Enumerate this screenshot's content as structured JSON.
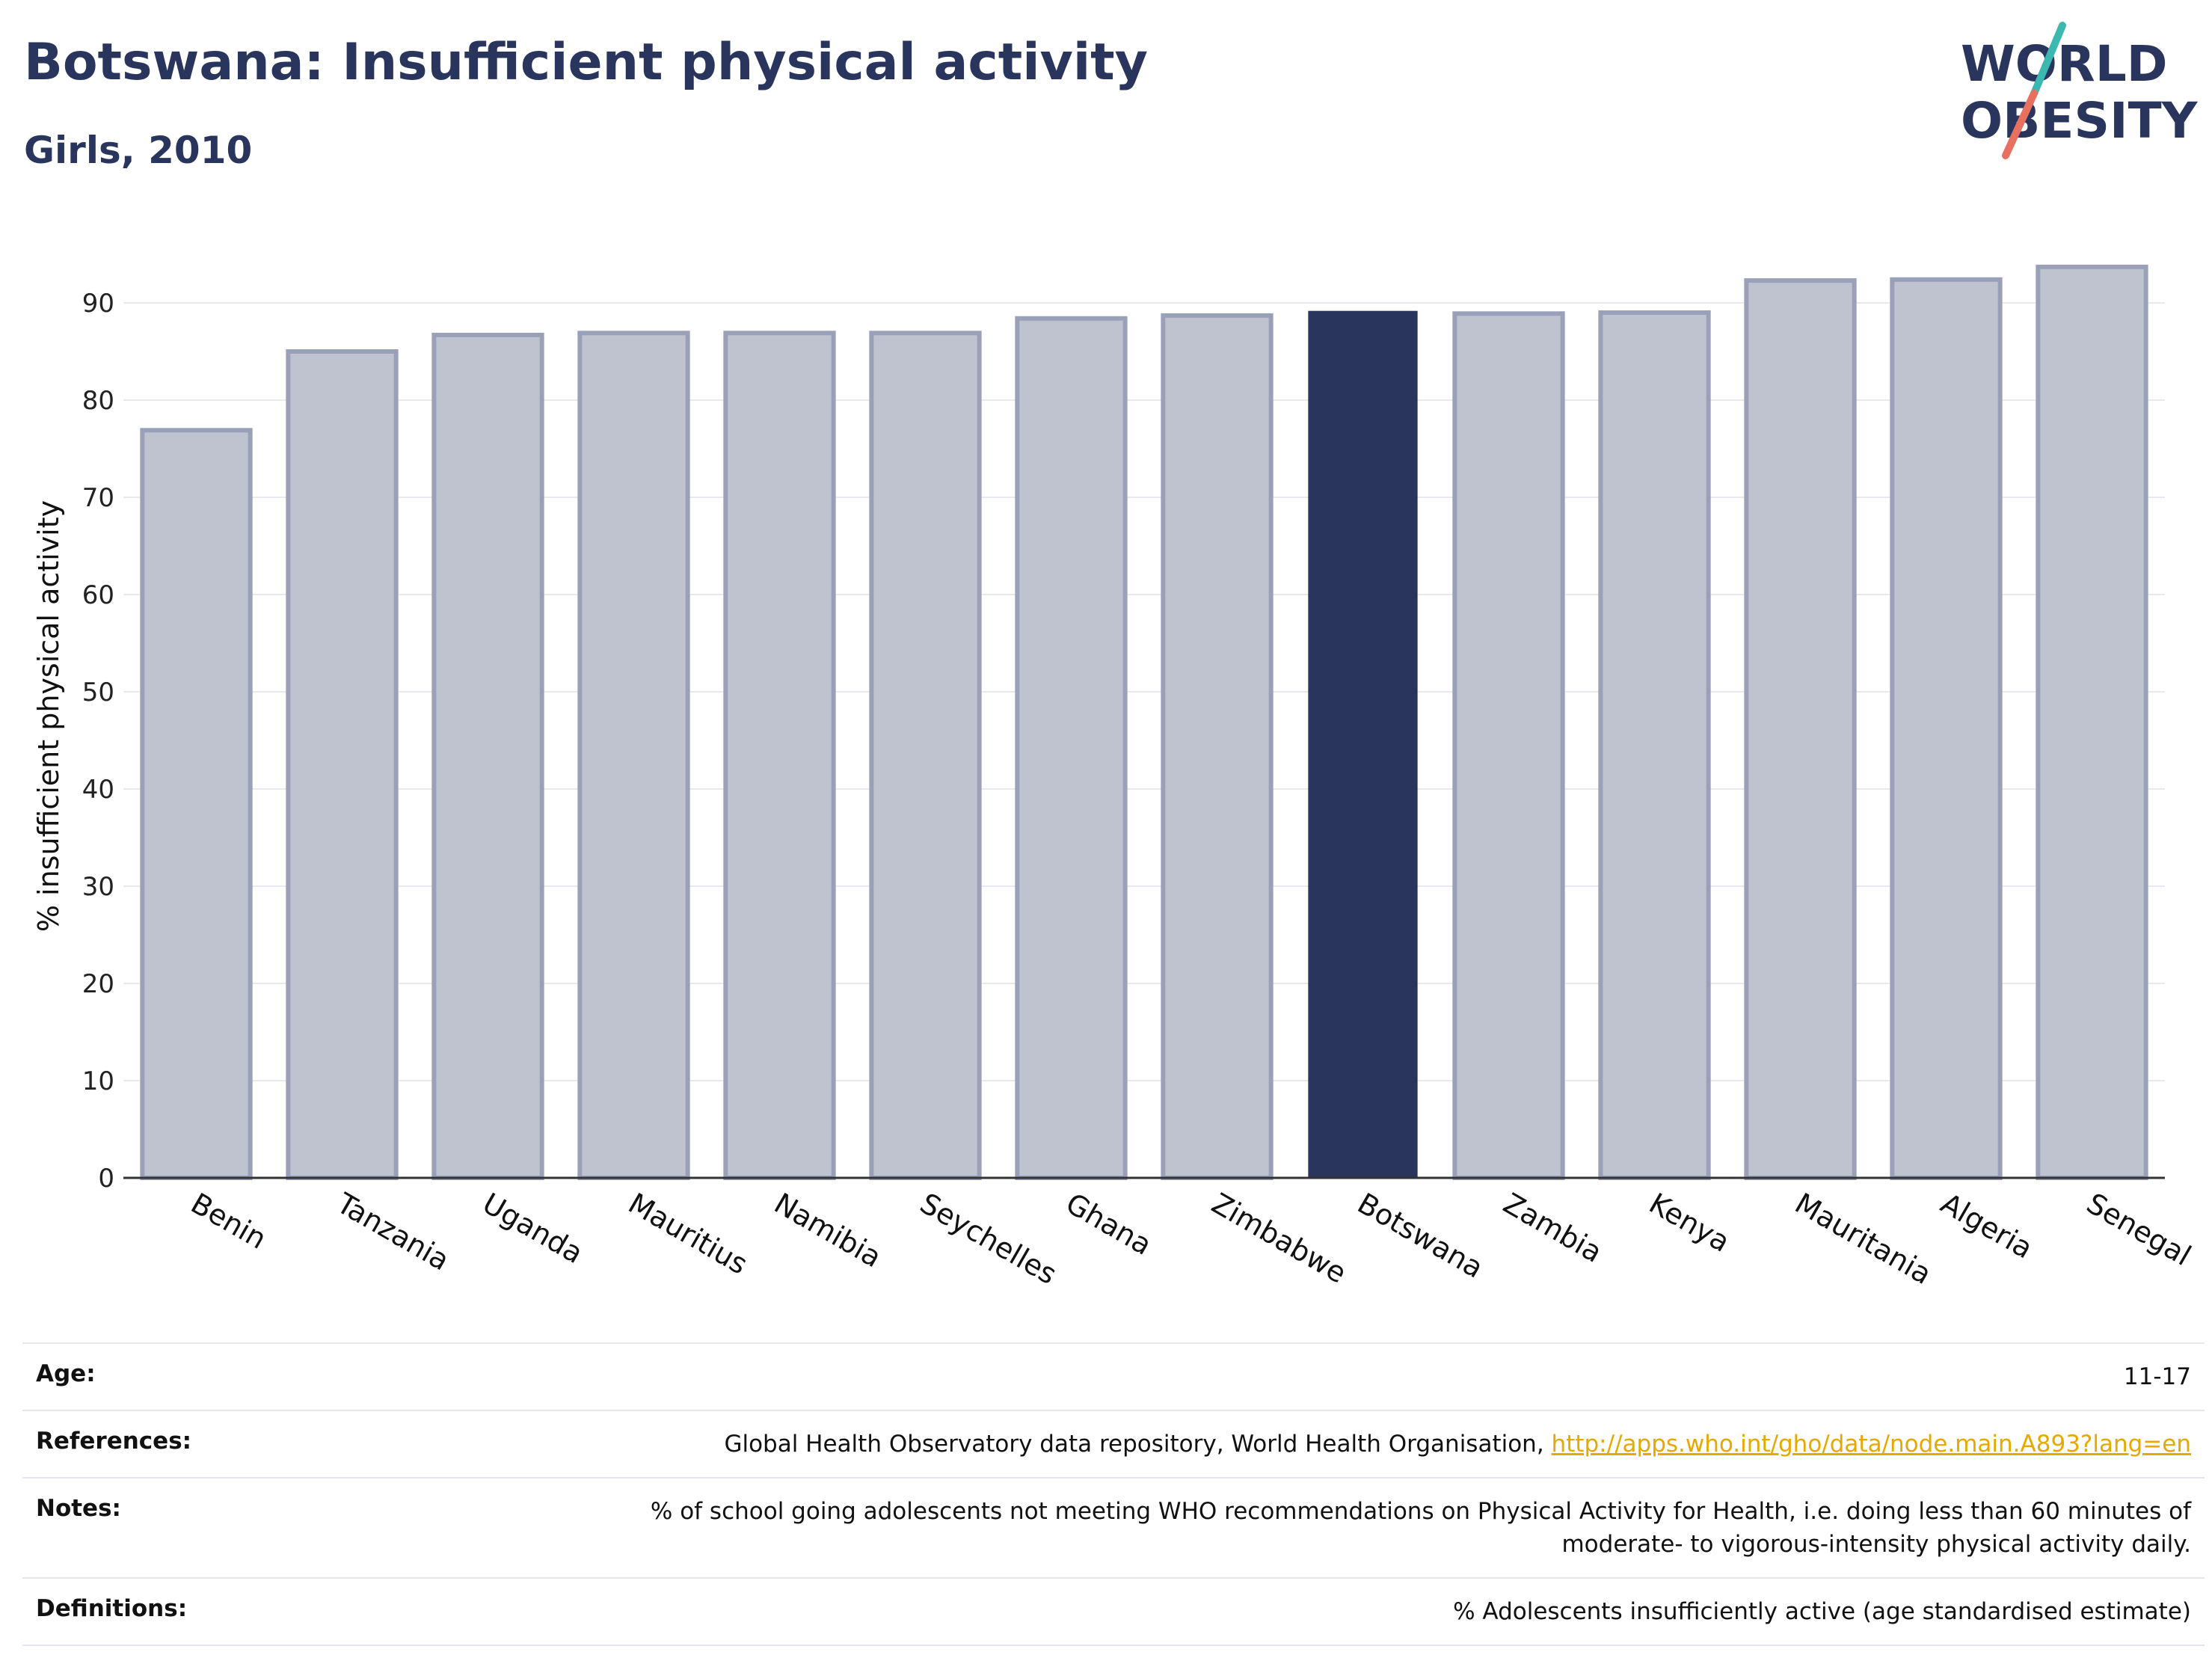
{
  "title": "Botswana: Insufficient physical activity",
  "subtitle": "Girls, 2010",
  "logo": {
    "line1": "WORLD",
    "line2": "OBESITY",
    "accent_teal": "#3bb8b0",
    "accent_red": "#e8705e"
  },
  "colors": {
    "highlight": "#2a355e",
    "bar_fill": "#bfc2cf",
    "bar_stroke": "#9aa0b8",
    "text": "#2a355e"
  },
  "chart_data": {
    "type": "bar",
    "categories": [
      "Benin",
      "Tanzania",
      "Uganda",
      "Mauritius",
      "Namibia",
      "Seychelles",
      "Ghana",
      "Zimbabwe",
      "Botswana",
      "Zambia",
      "Kenya",
      "Mauritania",
      "Algeria",
      "Senegal"
    ],
    "values": [
      76.9,
      85.0,
      86.7,
      86.9,
      86.9,
      86.9,
      88.4,
      88.7,
      89.1,
      88.9,
      89.0,
      92.3,
      92.4,
      93.7
    ],
    "highlight": "Botswana",
    "ylabel": "% insufficient physical activity",
    "ylim": [
      0,
      95
    ],
    "yticks": [
      0,
      10,
      20,
      30,
      40,
      50,
      60,
      70,
      80,
      90
    ],
    "grid": true
  },
  "info": {
    "age_label": "Age:",
    "age_value": "11-17",
    "references_label": "References:",
    "references_text": "Global Health Observatory data repository, World Health Organisation, ",
    "references_link": "http://apps.who.int/gho/data/node.main.A893?lang=en",
    "notes_label": "Notes:",
    "notes_line1": "% of school going adolescents not meeting WHO recommendations on Physical Activity for Health, i.e. doing less than 60 minutes of",
    "notes_line2": "moderate- to vigorous-intensity physical activity daily.",
    "definitions_label": "Definitions:",
    "definitions_value": "% Adolescents insufficiently active (age standardised estimate)"
  }
}
